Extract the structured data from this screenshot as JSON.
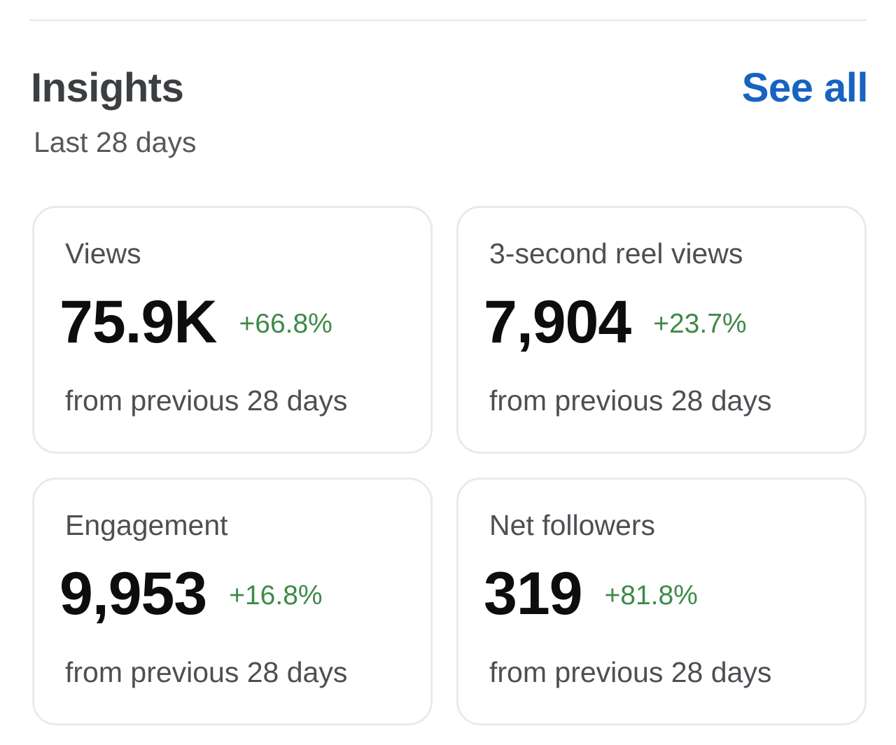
{
  "header": {
    "title": "Insights",
    "see_all": "See all",
    "period": "Last 28 days"
  },
  "cards": [
    {
      "label": "Views",
      "value": "75.9K",
      "change": "+66.8%",
      "footer": "from previous 28 days"
    },
    {
      "label": "3-second reel views",
      "value": "7,904",
      "change": "+23.7%",
      "footer": "from previous 28 days"
    },
    {
      "label": "Engagement",
      "value": "9,953",
      "change": "+16.8%",
      "footer": "from previous 28 days"
    },
    {
      "label": "Net followers",
      "value": "319",
      "change": "+81.8%",
      "footer": "from previous 28 days"
    }
  ],
  "colors": {
    "accent": "#1763c2",
    "positive_change": "#3e8a48",
    "title_text": "#3c3f42",
    "border": "#e8eaec"
  }
}
